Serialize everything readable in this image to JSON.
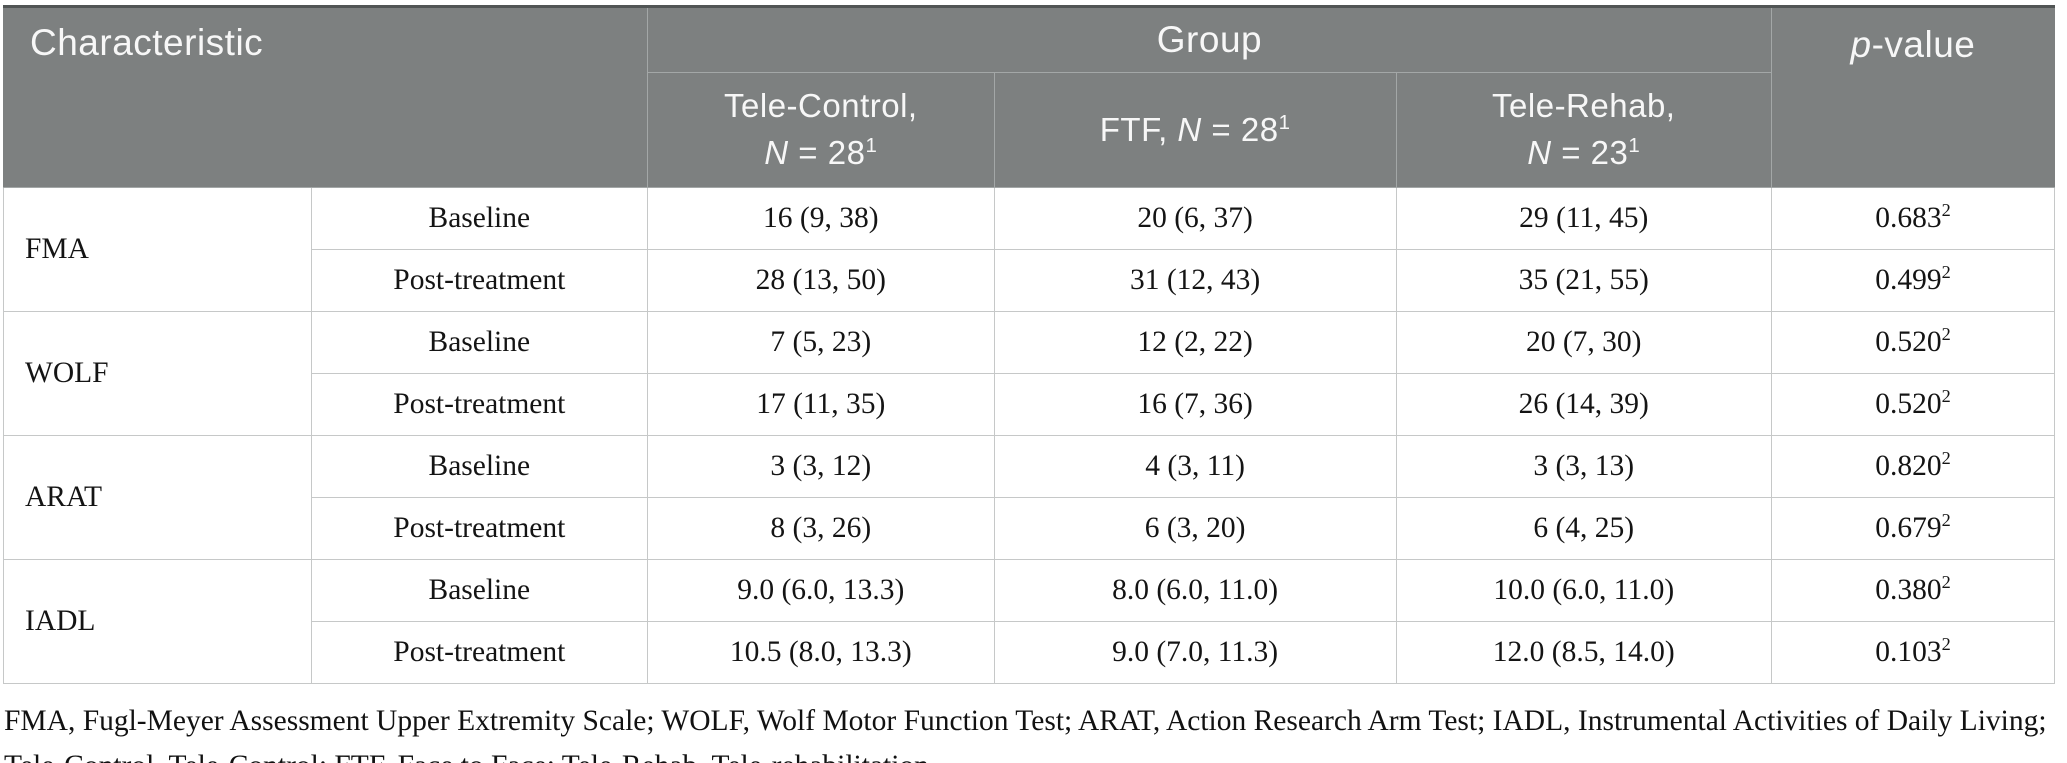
{
  "table_header": {
    "characteristic": "Characteristic",
    "group": "Group",
    "p_italic": "p",
    "p_rest": "-value",
    "subcols": [
      {
        "label": "Tele-Control,",
        "n_italic": "N",
        "n_rest": " = 28",
        "sup": "1"
      },
      {
        "label": "FTF,",
        "n_italic": "N",
        "n_rest": " = 28",
        "sup": "1"
      },
      {
        "label": "Tele-Rehab,",
        "n_italic": "N",
        "n_rest": " = 23",
        "sup": "1"
      }
    ]
  },
  "rows": [
    {
      "label": "FMA",
      "measures": [
        {
          "name": "Baseline",
          "values": [
            "16 (9, 38)",
            "20 (6, 37)",
            "29 (11, 45)"
          ],
          "p": "0.683",
          "p_sup": "2"
        },
        {
          "name": "Post-treatment",
          "values": [
            "28 (13, 50)",
            "31 (12, 43)",
            "35 (21, 55)"
          ],
          "p": "0.499",
          "p_sup": "2"
        }
      ]
    },
    {
      "label": "WOLF",
      "measures": [
        {
          "name": "Baseline",
          "values": [
            "7 (5, 23)",
            "12 (2, 22)",
            "20 (7, 30)"
          ],
          "p": "0.520",
          "p_sup": "2"
        },
        {
          "name": "Post-treatment",
          "values": [
            "17 (11, 35)",
            "16 (7, 36)",
            "26 (14, 39)"
          ],
          "p": "0.520",
          "p_sup": "2"
        }
      ]
    },
    {
      "label": "ARAT",
      "measures": [
        {
          "name": "Baseline",
          "values": [
            "3 (3, 12)",
            "4 (3, 11)",
            "3 (3, 13)"
          ],
          "p": "0.820",
          "p_sup": "2"
        },
        {
          "name": "Post-treatment",
          "values": [
            "8 (3, 26)",
            "6 (3, 20)",
            "6 (4, 25)"
          ],
          "p": "0.679",
          "p_sup": "2"
        }
      ]
    },
    {
      "label": "IADL",
      "measures": [
        {
          "name": "Baseline",
          "values": [
            "9.0 (6.0, 13.3)",
            "8.0 (6.0, 11.0)",
            "10.0 (6.0, 11.0)"
          ],
          "p": "0.380",
          "p_sup": "2"
        },
        {
          "name": "Post-treatment",
          "values": [
            "10.5 (8.0, 13.3)",
            "9.0 (7.0, 11.3)",
            "12.0 (8.5, 14.0)"
          ],
          "p": "0.103",
          "p_sup": "2"
        }
      ]
    }
  ],
  "footnote": "FMA, Fugl-Meyer Assessment Upper Extremity Scale; WOLF, Wolf Motor Function Test; ARAT, Action Research Arm Test; IADL, Instrumental Activities of Daily Living; Tele-Control, Tele-Control; FTF, Face to Face; Tele-Rehab, Tele-rehabilitation.",
  "colors": {
    "header_bg": "#7d8080",
    "header_text": "#f7f7f7",
    "top_border": "#515555",
    "body_border": "#c6c8c8",
    "body_text": "#141414"
  }
}
